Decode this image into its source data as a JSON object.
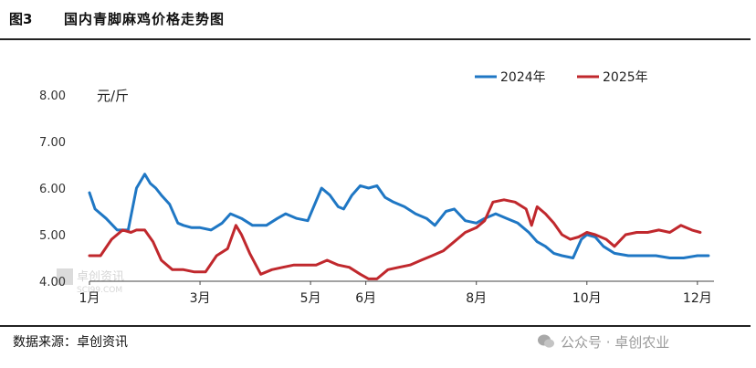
{
  "figure": {
    "label": "图3",
    "title": "国内青脚麻鸡价格走势图"
  },
  "source": "数据来源：卓创资讯",
  "watermark": {
    "logo_text": "卓创资讯",
    "logo_sub": "SCI99.COM",
    "wechat_text": "公众号 · 卓创农业",
    "wechat_icon": "wechat-icon"
  },
  "chart_data": {
    "type": "line",
    "unit": "元/斤",
    "ylim": [
      4.0,
      8.0
    ],
    "yticks": [
      "4.00",
      "5.00",
      "6.00",
      "7.00",
      "8.00"
    ],
    "ytick_values": [
      4,
      5,
      6,
      7,
      8
    ],
    "xlim": [
      1,
      12.3
    ],
    "xticks": [
      "1月",
      "3月",
      "5月",
      "6月",
      "8月",
      "10月",
      "12月"
    ],
    "xtick_values": [
      1,
      3,
      5,
      6,
      8,
      10,
      12
    ],
    "grid": false,
    "legend_position": "top-right",
    "series": [
      {
        "name": "2024年",
        "color": "#1f77c4",
        "x": [
          1.0,
          1.1,
          1.3,
          1.5,
          1.7,
          1.85,
          2.0,
          2.1,
          2.2,
          2.3,
          2.45,
          2.6,
          2.7,
          2.85,
          3.0,
          3.2,
          3.4,
          3.55,
          3.75,
          3.95,
          4.2,
          4.4,
          4.55,
          4.75,
          4.95,
          5.2,
          5.35,
          5.5,
          5.6,
          5.75,
          5.9,
          6.05,
          6.2,
          6.35,
          6.5,
          6.7,
          6.9,
          7.1,
          7.25,
          7.45,
          7.6,
          7.8,
          8.0,
          8.15,
          8.35,
          8.55,
          8.75,
          8.95,
          9.1,
          9.25,
          9.4,
          9.55,
          9.75,
          9.9,
          10.0,
          10.15,
          10.3,
          10.5,
          10.75,
          11.0,
          11.25,
          11.5,
          11.75,
          12.0,
          12.2
        ],
        "values": [
          5.9,
          5.55,
          5.35,
          5.1,
          5.1,
          6.0,
          6.3,
          6.1,
          6.0,
          5.85,
          5.65,
          5.25,
          5.2,
          5.15,
          5.15,
          5.1,
          5.25,
          5.45,
          5.35,
          5.2,
          5.2,
          5.35,
          5.45,
          5.35,
          5.3,
          6.0,
          5.85,
          5.6,
          5.55,
          5.85,
          6.05,
          6.0,
          6.05,
          5.8,
          5.7,
          5.6,
          5.45,
          5.35,
          5.2,
          5.5,
          5.55,
          5.3,
          5.25,
          5.35,
          5.45,
          5.35,
          5.25,
          5.05,
          4.85,
          4.75,
          4.6,
          4.55,
          4.5,
          4.9,
          5.0,
          4.95,
          4.75,
          4.6,
          4.55,
          4.55,
          4.55,
          4.5,
          4.5,
          4.55,
          4.55
        ]
      },
      {
        "name": "2025年",
        "color": "#c0282d",
        "x": [
          1.0,
          1.2,
          1.4,
          1.6,
          1.75,
          1.85,
          2.0,
          2.15,
          2.3,
          2.5,
          2.7,
          2.9,
          3.1,
          3.3,
          3.5,
          3.65,
          3.75,
          3.9,
          4.1,
          4.3,
          4.5,
          4.7,
          4.9,
          5.1,
          5.3,
          5.5,
          5.7,
          5.9,
          6.05,
          6.2,
          6.4,
          6.6,
          6.8,
          7.0,
          7.2,
          7.4,
          7.6,
          7.8,
          8.0,
          8.15,
          8.3,
          8.5,
          8.7,
          8.9,
          9.0,
          9.1,
          9.25,
          9.4,
          9.55,
          9.7,
          9.85,
          10.0,
          10.15,
          10.35,
          10.5,
          10.7,
          10.9,
          11.1,
          11.3,
          11.5,
          11.7,
          11.9,
          12.05
        ],
        "values": [
          4.55,
          4.55,
          4.9,
          5.1,
          5.05,
          5.1,
          5.1,
          4.85,
          4.45,
          4.25,
          4.25,
          4.2,
          4.2,
          4.55,
          4.7,
          5.2,
          5.0,
          4.6,
          4.15,
          4.25,
          4.3,
          4.35,
          4.35,
          4.35,
          4.45,
          4.35,
          4.3,
          4.15,
          4.05,
          4.05,
          4.25,
          4.3,
          4.35,
          4.45,
          4.55,
          4.65,
          4.85,
          5.05,
          5.15,
          5.3,
          5.7,
          5.75,
          5.7,
          5.55,
          5.2,
          5.6,
          5.45,
          5.25,
          5.0,
          4.9,
          4.95,
          5.05,
          5.0,
          4.9,
          4.75,
          5.0,
          5.05,
          5.05,
          5.1,
          5.05,
          5.2,
          5.1,
          5.05
        ]
      }
    ]
  }
}
